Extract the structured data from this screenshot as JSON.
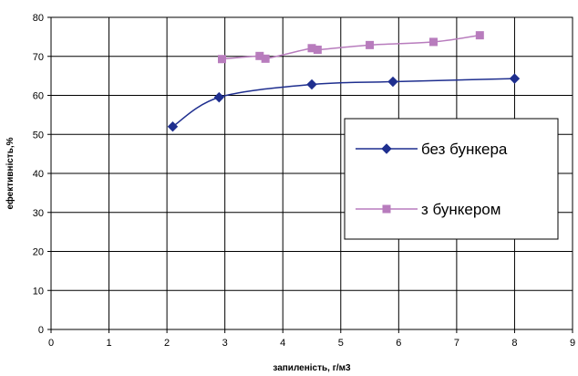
{
  "chart_data": {
    "type": "line",
    "xlabel": "запиленість, г/м3",
    "ylabel": "ефективність,%",
    "xlim": [
      0,
      9
    ],
    "ylim": [
      0,
      80
    ],
    "xticks": [
      "0",
      "1",
      "2",
      "3",
      "4",
      "5",
      "6",
      "7",
      "8",
      "9"
    ],
    "yticks": [
      "0",
      "10",
      "20",
      "30",
      "40",
      "50",
      "60",
      "70",
      "80"
    ],
    "grid": true,
    "legend_position": "right",
    "series": [
      {
        "name": "без бункера",
        "color": "#1f2f8f",
        "marker": "diamond",
        "x": [
          2.1,
          2.9,
          4.5,
          5.9,
          8.0
        ],
        "y": [
          52.0,
          59.5,
          62.8,
          63.5,
          64.3
        ]
      },
      {
        "name": "з бункером",
        "color": "#b87cbd",
        "marker": "square",
        "x": [
          2.95,
          3.6,
          3.7,
          4.5,
          4.6,
          5.5,
          6.6,
          7.4
        ],
        "y": [
          69.3,
          70.1,
          69.4,
          72.1,
          71.7,
          72.9,
          73.7,
          75.4
        ]
      }
    ]
  }
}
